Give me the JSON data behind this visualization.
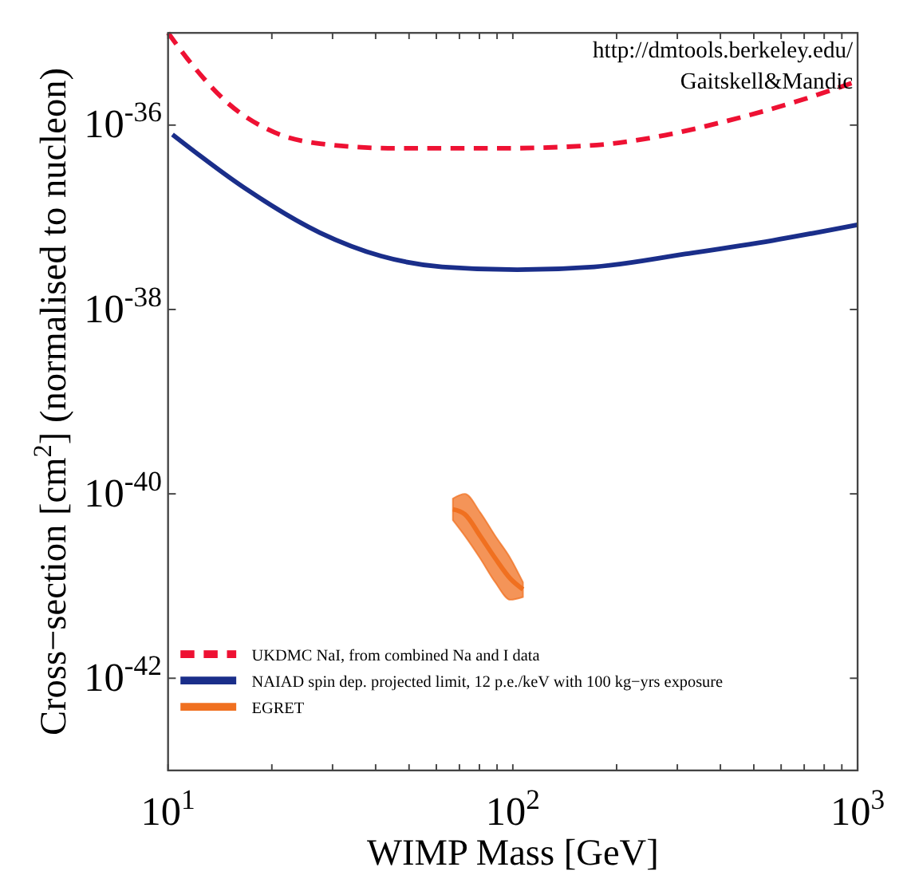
{
  "chart_data": {
    "type": "line",
    "xlabel": "WIMP Mass [GeV]",
    "ylabel": "Cross−section [cm$^{2}$] (normalised to nucleon)",
    "log": "xy",
    "xlim": [
      10,
      1000
    ],
    "ylim": [
      1e-43,
      1e-35
    ],
    "xticks": [
      {
        "value": 10,
        "label": "10$^{1}$"
      },
      {
        "value": 20,
        "label": null
      },
      {
        "value": 30,
        "label": null
      },
      {
        "value": 40,
        "label": null
      },
      {
        "value": 50,
        "label": null
      },
      {
        "value": 60,
        "label": null
      },
      {
        "value": 70,
        "label": null
      },
      {
        "value": 80,
        "label": null
      },
      {
        "value": 90,
        "label": null
      },
      {
        "value": 100,
        "label": "10$^{2}$"
      },
      {
        "value": 200,
        "label": null
      },
      {
        "value": 300,
        "label": null
      },
      {
        "value": 400,
        "label": null
      },
      {
        "value": 500,
        "label": null
      },
      {
        "value": 600,
        "label": null
      },
      {
        "value": 700,
        "label": null
      },
      {
        "value": 800,
        "label": null
      },
      {
        "value": 900,
        "label": null
      },
      {
        "value": 1000,
        "label": "10$^{3}$"
      }
    ],
    "yticks": [
      {
        "value": 1e-42,
        "label": "10$^{-42}$"
      },
      {
        "value": 1e-40,
        "label": "10$^{-40}$"
      },
      {
        "value": 1e-38,
        "label": "10$^{-38}$"
      },
      {
        "value": 1e-36,
        "label": "10$^{-36}$"
      }
    ],
    "legend": "bottom left",
    "series": [
      {
        "name": "UKDMC NaI, from combined Na and I data",
        "color": "#ee1133",
        "line_style": "dashed",
        "x": [
          10,
          11.4,
          15,
          20.4,
          27.6,
          45.9,
          91.6,
          167,
          258,
          414,
          664,
          1000
        ],
        "values": [
          1e-35,
          5.2e-36,
          1.7e-36,
          8.3e-37,
          6.3e-37,
          5.6e-37,
          5.6e-37,
          6e-37,
          7.4e-37,
          1.1e-36,
          1.8e-36,
          3e-36
        ]
      },
      {
        "name": "NAIAD spin dep. projected limit, 12 p.e./keV with 100 kg−yrs exposure",
        "color": "#1a2e8a",
        "line_style": "solid",
        "x": [
          10.3,
          16.6,
          27.6,
          41.5,
          62.4,
          103,
          172,
          316,
          566,
          1000
        ],
        "values": [
          7.9e-37,
          2.1e-37,
          6.8e-38,
          3.8e-38,
          2.9e-38,
          2.7e-38,
          2.9e-38,
          4e-38,
          5.6e-38,
          8.3e-38
        ]
      },
      {
        "name": "EGRET",
        "type": "line",
        "color": "#f07020",
        "x": [
          67,
          72.6,
          80.4,
          88.9,
          98.4,
          107
        ],
        "values": [
          6.8e-41,
          6e-41,
          3.5e-41,
          2e-41,
          1.2e-41,
          9.2e-42
        ],
        "upper": [
          8.9e-41,
          1e-40,
          6.3e-41,
          3.5e-41,
          2e-41,
          1.1e-41
        ],
        "lower": [
          5.2e-41,
          3.5e-41,
          2e-41,
          1.1e-41,
          7.1e-42,
          7.6e-42
        ]
      }
    ],
    "annotations": [
      "http://dmtools.berkeley.edu/",
      "Gaitskell&Mandic"
    ]
  }
}
